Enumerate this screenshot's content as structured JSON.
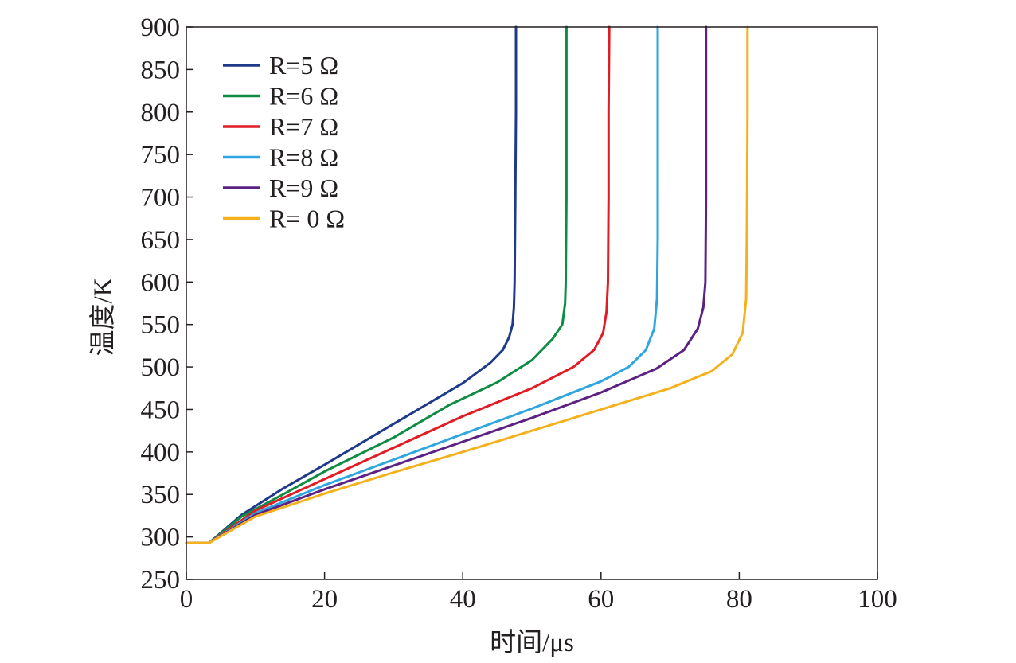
{
  "chart_data": {
    "type": "line",
    "xlabel": "时间/μs",
    "ylabel": "温度/K",
    "xlim": [
      0,
      100
    ],
    "ylim": [
      250,
      900
    ],
    "xticks": [
      0,
      20,
      40,
      60,
      80,
      100
    ],
    "yticks": [
      250,
      300,
      350,
      400,
      450,
      500,
      550,
      600,
      650,
      700,
      750,
      800,
      850,
      900
    ],
    "grid": false,
    "legend_position": "top-left",
    "series": [
      {
        "name": "R=5 Ω",
        "color": "#1f3a8a",
        "x": [
          0,
          3.3,
          8,
          14,
          20,
          30,
          40,
          44,
          45.8,
          46.7,
          47.2,
          47.4,
          47.5,
          47.6,
          47.7,
          47.7
        ],
        "y": [
          293,
          293,
          326,
          357,
          385,
          433,
          481,
          505,
          520,
          535,
          550,
          570,
          600,
          700,
          800,
          900
        ]
      },
      {
        "name": "R=6 Ω",
        "color": "#0e8c44",
        "x": [
          0,
          3.3,
          8,
          14,
          20,
          30,
          38,
          45,
          50,
          53,
          54.4,
          54.8,
          54.9,
          55,
          55,
          55
        ],
        "y": [
          293,
          293,
          324,
          350,
          377,
          417,
          455,
          482,
          508,
          533,
          550,
          575,
          600,
          700,
          800,
          900
        ]
      },
      {
        "name": "R=7 Ω",
        "color": "#e11c24",
        "x": [
          0,
          3.3,
          10,
          20,
          30,
          40,
          50,
          56,
          59,
          60.3,
          60.8,
          61,
          61.1,
          61.1,
          61.2
        ],
        "y": [
          293,
          293,
          331,
          368,
          405,
          442,
          475,
          500,
          520,
          540,
          565,
          600,
          700,
          800,
          900
        ]
      },
      {
        "name": "R=8 Ω",
        "color": "#2fa6e0",
        "x": [
          0,
          3.3,
          10,
          20,
          30,
          40,
          50,
          60,
          64,
          66.5,
          67.7,
          68.1,
          68.2,
          68.2,
          68.2
        ],
        "y": [
          293,
          293,
          328,
          361,
          391,
          421,
          451,
          483,
          500,
          520,
          545,
          580,
          650,
          800,
          900
        ]
      },
      {
        "name": "R=9 Ω",
        "color": "#5b2183",
        "x": [
          0,
          3.3,
          10,
          20,
          30,
          40,
          50,
          60,
          68,
          72,
          74,
          74.8,
          75.1,
          75.2,
          75.2
        ],
        "y": [
          293,
          293,
          326,
          356,
          384,
          412,
          440,
          470,
          498,
          520,
          545,
          570,
          600,
          700,
          900
        ]
      },
      {
        "name": "R= 0 Ω",
        "color": "#f4b11c",
        "x": [
          0,
          3.3,
          10,
          20,
          30,
          40,
          50,
          60,
          70,
          76,
          79,
          80.5,
          81,
          81.1,
          81.2,
          81.2
        ],
        "y": [
          293,
          293,
          324,
          351,
          376,
          400,
          425,
          450,
          475,
          495,
          515,
          540,
          580,
          650,
          800,
          900
        ]
      }
    ]
  }
}
